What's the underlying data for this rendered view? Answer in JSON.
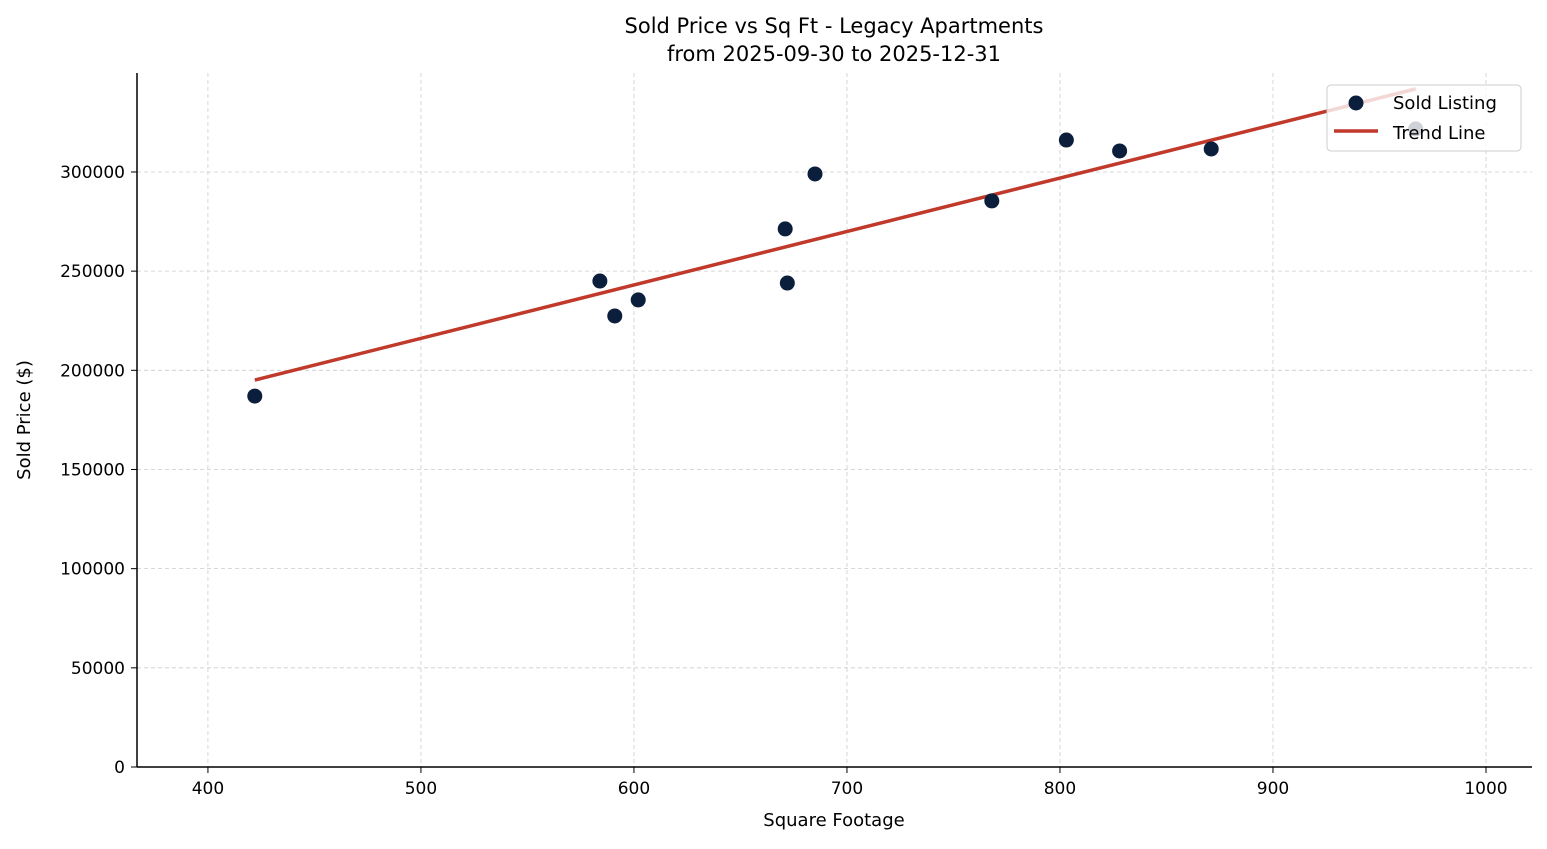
{
  "chart_data": {
    "type": "scatter",
    "title": "Sold Price vs Sq Ft - Legacy Apartments",
    "subtitle": "from 2025-09-30 to 2025-12-31",
    "xlabel": "Square Footage",
    "ylabel": "Sold Price ($)",
    "xlim": [
      366.7,
      1021.6
    ],
    "ylim": [
      0,
      349900
    ],
    "xticks": [
      400,
      500,
      600,
      700,
      800,
      900,
      1000
    ],
    "yticks": [
      0,
      50000,
      100000,
      150000,
      200000,
      250000,
      300000
    ],
    "grid": true,
    "legend_position": "top-right",
    "series": [
      {
        "name": "Sold Listing",
        "type": "scatter",
        "color": "#0b1e3b",
        "points": [
          {
            "x": 422,
            "y": 187000
          },
          {
            "x": 584,
            "y": 245000
          },
          {
            "x": 591,
            "y": 227400
          },
          {
            "x": 602,
            "y": 235500
          },
          {
            "x": 671,
            "y": 271300
          },
          {
            "x": 672,
            "y": 244000
          },
          {
            "x": 685,
            "y": 299000
          },
          {
            "x": 768,
            "y": 285400
          },
          {
            "x": 803,
            "y": 316100
          },
          {
            "x": 828,
            "y": 310600
          },
          {
            "x": 871,
            "y": 311600
          },
          {
            "x": 967,
            "y": 321700
          }
        ]
      },
      {
        "name": "Trend Line",
        "type": "line",
        "color": "#c0392b",
        "points": [
          {
            "x": 422,
            "y": 195100
          },
          {
            "x": 967,
            "y": 341900
          }
        ]
      }
    ]
  }
}
